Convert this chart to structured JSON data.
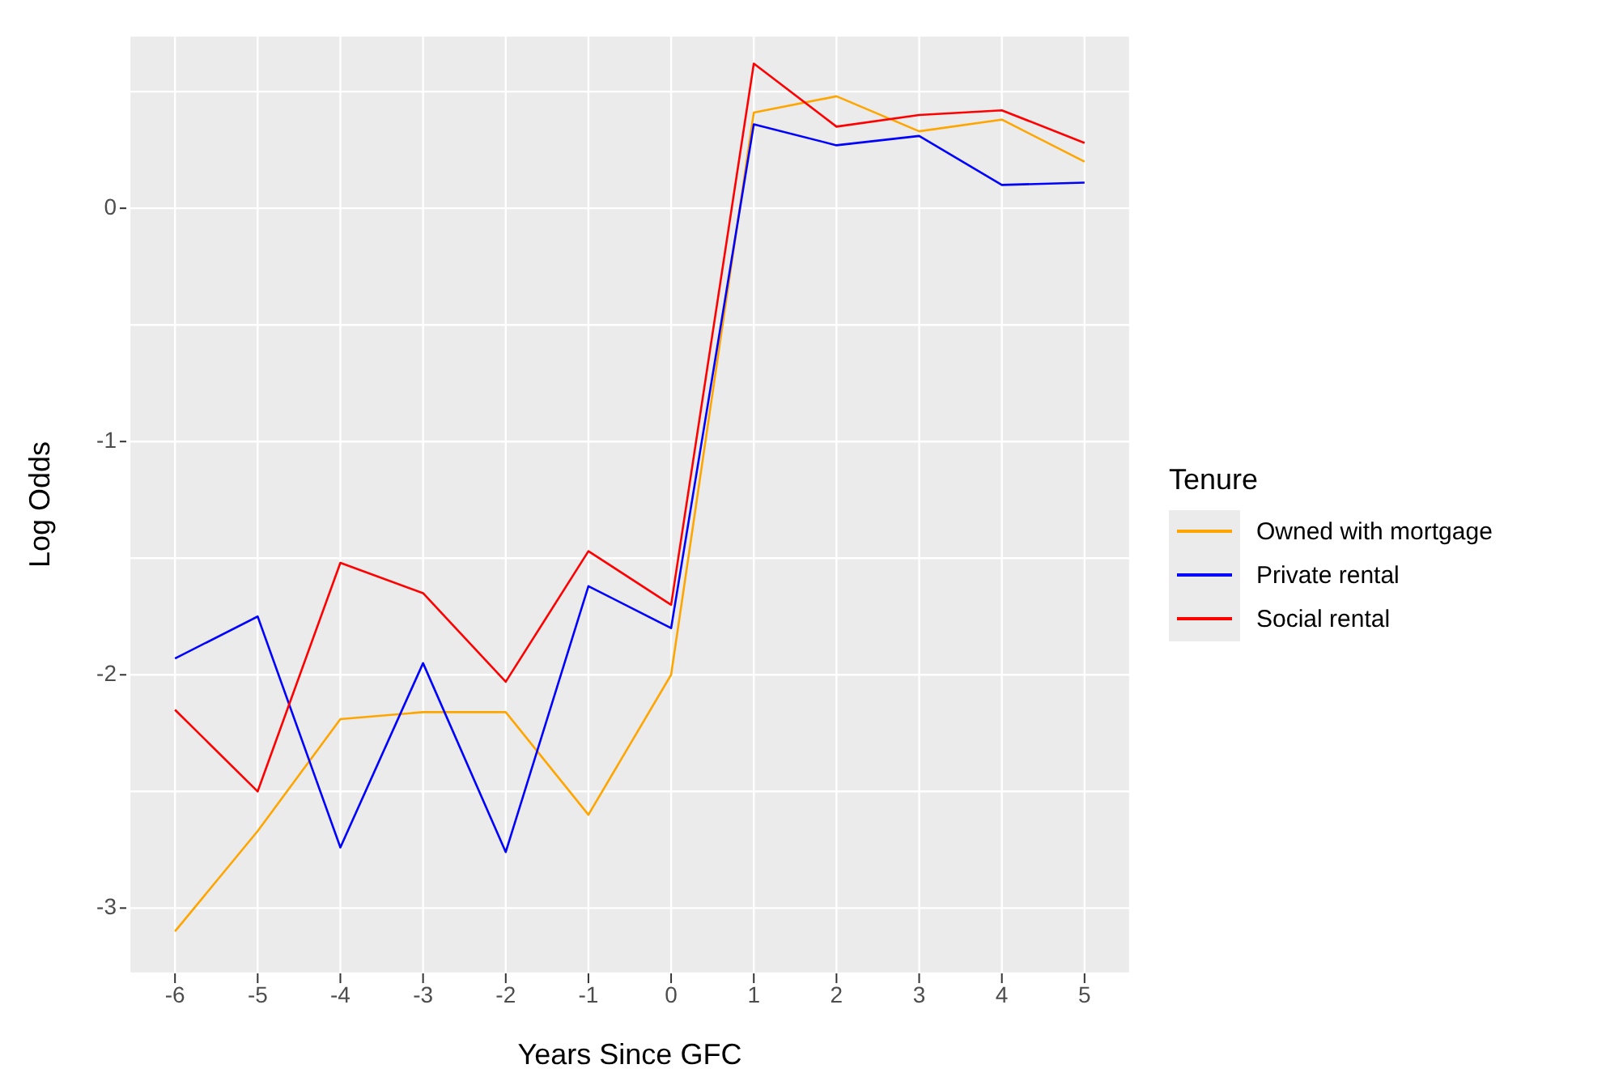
{
  "chart_data": {
    "type": "line",
    "xlabel": "Years Since GFC",
    "ylabel": "Log Odds",
    "legend_title": "Tenure",
    "legend": "right",
    "grid": true,
    "marker": "none",
    "line_style": "solid",
    "x": [
      -6,
      -5,
      -4,
      -3,
      -2,
      -1,
      0,
      1,
      2,
      3,
      4,
      5
    ],
    "xlim": [
      -6.55,
      5.55
    ],
    "xticks": [
      -6,
      -5,
      -4,
      -3,
      -2,
      -1,
      0,
      1,
      2,
      3,
      4,
      5
    ],
    "ylim": [
      -3.28,
      0.74
    ],
    "yticks": [
      -3,
      {
        "value": -2.5,
        "label": null
      },
      -2,
      {
        "value": -1.5,
        "label": null
      },
      -1,
      {
        "value": -0.5,
        "label": null
      },
      0,
      {
        "value": 0.5,
        "label": null
      }
    ],
    "series": [
      {
        "name": "Owned with mortgage",
        "color": "#ffa500",
        "values": [
          -3.1,
          -2.67,
          -2.19,
          -2.16,
          -2.16,
          -2.6,
          -2.0,
          0.41,
          0.48,
          0.33,
          0.38,
          0.2
        ]
      },
      {
        "name": "Private rental",
        "color": "#0000ff",
        "values": [
          -1.93,
          -1.75,
          -2.74,
          -1.95,
          -2.76,
          -1.62,
          -1.8,
          0.36,
          0.27,
          0.31,
          0.1,
          0.11
        ]
      },
      {
        "name": "Social rental",
        "color": "#ff0000",
        "values": [
          -2.15,
          -2.5,
          -1.52,
          -1.65,
          -2.03,
          -1.47,
          -1.7,
          0.62,
          0.35,
          0.4,
          0.42,
          0.28
        ]
      }
    ]
  }
}
